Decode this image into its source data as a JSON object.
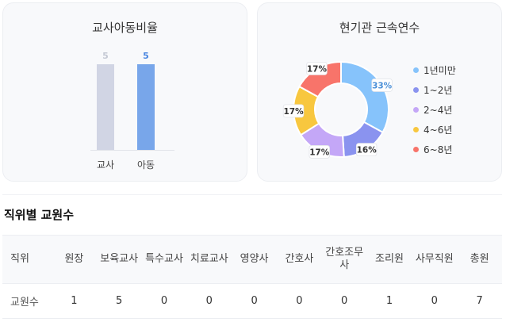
{
  "teacher_child_ratio": {
    "title": "교사아동비율",
    "chart_data": {
      "type": "bar",
      "categories": [
        "교사",
        "아동"
      ],
      "values": [
        5,
        5
      ],
      "value_labels": [
        "5",
        "5"
      ],
      "colors": [
        "#d1d5e4",
        "#78a6ea"
      ],
      "value_colors": [
        "#c5c9d4",
        "#4a86e0"
      ]
    }
  },
  "tenure": {
    "title": "현기관 근속연수",
    "chart_data": {
      "type": "pie",
      "categories": [
        "1년미만",
        "1~2년",
        "2~4년",
        "4~6년",
        "6~8년"
      ],
      "values": [
        33,
        16,
        17,
        17,
        17
      ],
      "labels": [
        "33%",
        "16%",
        "17%",
        "17%",
        "17%"
      ],
      "colors": [
        "#86c3fb",
        "#8a93ef",
        "#c4a7f7",
        "#f8c73f",
        "#f8746a"
      ],
      "legend_position": "right"
    }
  },
  "staff_section": {
    "title": "직위별 교원수",
    "headers": [
      "직위",
      "원장",
      "보육교사",
      "특수교사",
      "치료교사",
      "영양사",
      "간호사",
      "간호조무사",
      "조리원",
      "사무직원",
      "총원"
    ],
    "row_label": "교원수",
    "values": [
      "1",
      "5",
      "0",
      "0",
      "0",
      "0",
      "0",
      "1",
      "0",
      "7"
    ]
  }
}
